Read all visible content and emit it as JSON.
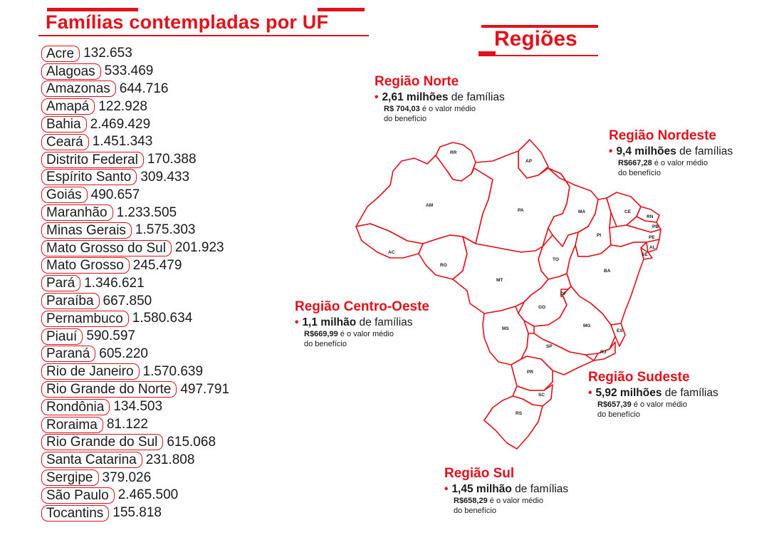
{
  "left_title": "Famílias contempladas por UF",
  "right_title": "Regiões",
  "ufs": [
    {
      "name": "Acre",
      "value": "132.653"
    },
    {
      "name": "Alagoas",
      "value": "533.469"
    },
    {
      "name": "Amazonas",
      "value": "644.716"
    },
    {
      "name": "Amapá",
      "value": "122.928"
    },
    {
      "name": "Bahia",
      "value": "2.469.429"
    },
    {
      "name": "Ceará",
      "value": "1.451.343"
    },
    {
      "name": "Distrito Federal",
      "value": "170.388"
    },
    {
      "name": "Espírito Santo",
      "value": "309.433"
    },
    {
      "name": "Goiás",
      "value": "490.657"
    },
    {
      "name": "Maranhão",
      "value": "1.233.505"
    },
    {
      "name": "Minas Gerais",
      "value": "1.575.303"
    },
    {
      "name": "Mato Grosso do Sul",
      "value": "201.923"
    },
    {
      "name": "Mato Grosso",
      "value": "245.479"
    },
    {
      "name": "Pará",
      "value": "1.346.621"
    },
    {
      "name": "Paraíba",
      "value": "667.850"
    },
    {
      "name": "Pernambuco",
      "value": "1.580.634"
    },
    {
      "name": "Piauí",
      "value": "590.597"
    },
    {
      "name": "Paraná",
      "value": "605.220"
    },
    {
      "name": "Rio de Janeiro",
      "value": "1.570.639"
    },
    {
      "name": "Rio Grande do Norte",
      "value": "497.791"
    },
    {
      "name": "Rondônia",
      "value": "134.503"
    },
    {
      "name": "Roraima",
      "value": "81.122"
    },
    {
      "name": "Rio Grande do Sul",
      "value": "615.068"
    },
    {
      "name": "Santa Catarina",
      "value": "231.808"
    },
    {
      "name": "Sergipe",
      "value": "379.026"
    },
    {
      "name": "São Paulo",
      "value": "2.465.500"
    },
    {
      "name": "Tocantins",
      "value": "155.818"
    }
  ],
  "regions": {
    "norte": {
      "name": "Região Norte",
      "families_bold": "2,61 milhões",
      "families_rest": " de famílias",
      "avg_bold": "R$ 704,03",
      "avg_rest": " é o valor médio",
      "line3": "do benefício"
    },
    "nordeste": {
      "name": "Região Nordeste",
      "families_bold": "9,4 milhões",
      "families_rest": " de famílias",
      "avg_bold": "R$667,28",
      "avg_rest": " é o valor médio",
      "line3": "do benefício"
    },
    "centro_oeste": {
      "name": "Região Centro-Oeste",
      "families_bold": "1,1 milhão",
      "families_rest": " de famílias",
      "avg_bold": "R$669,99",
      "avg_rest": " é o valor médio",
      "line3": "do benefício"
    },
    "sudeste": {
      "name": "Região Sudeste",
      "families_bold": "5,92 milhões",
      "families_rest": " de famílias",
      "avg_bold": "R$657,39",
      "avg_rest": " é o valor médio",
      "line3": "do benefício"
    },
    "sul": {
      "name": "Região Sul",
      "families_bold": "1,45 milhão",
      "families_rest": " de famílias",
      "avg_bold": "R$658,29",
      "avg_rest": " é o valor médio",
      "line3": "do benefício"
    }
  },
  "bullet": "•",
  "map_labels": {
    "RR": "RR",
    "AP": "AP",
    "AM": "AM",
    "PA": "PA",
    "MA": "MA",
    "CE": "CE",
    "RN": "RN",
    "PB": "PB",
    "PE": "PE",
    "AL": "AL",
    "SE": "SE",
    "PI": "PI",
    "AC": "AC",
    "RO": "RO",
    "TO": "TO",
    "BA": "BA",
    "MT": "MT",
    "DF": "DF",
    "GO": "GO",
    "MG": "MG",
    "ES": "ES",
    "MS": "MS",
    "SP": "SP",
    "RJ": "RJ",
    "PR": "PR",
    "SC": "SC",
    "RS": "RS"
  },
  "colors": {
    "accent": "#e0121b",
    "text": "#1a1a1a"
  }
}
